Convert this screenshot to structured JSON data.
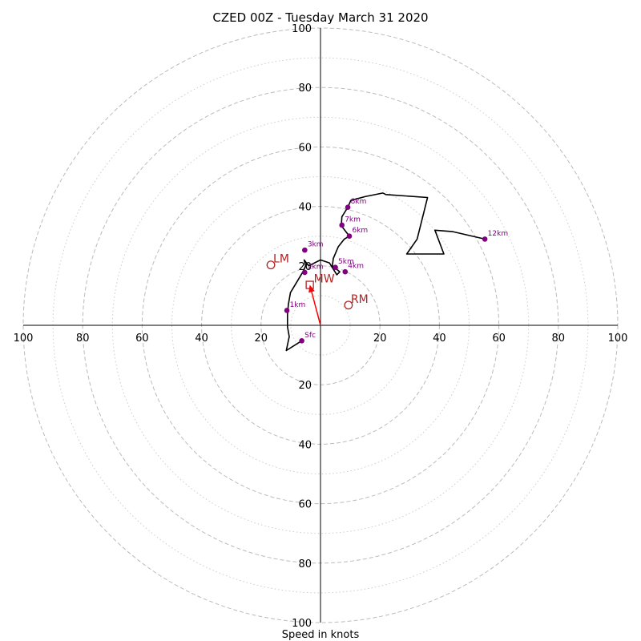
{
  "chart_data": {
    "type": "hodograph",
    "title": "CZED 00Z - Tuesday March 31 2020",
    "xlabel": "Speed in knots",
    "units": "knots",
    "range": [
      -100,
      100
    ],
    "ring_major_values": [
      20,
      40,
      60,
      80,
      100
    ],
    "ring_minor_values": [
      10,
      30,
      50,
      70,
      90
    ],
    "tick_values": [
      100,
      80,
      60,
      40,
      20
    ],
    "colors": {
      "trace": "#000000",
      "height_points": "#800080",
      "storm_motion": "#b22222",
      "mean_wind_arrow": "#ff0000",
      "major_rings": "#bbbbbb",
      "minor_rings": "#cccccc",
      "axes": "#000000"
    },
    "trace": [
      [
        -6.3,
        -5.2
      ],
      [
        -11.5,
        -8.5
      ],
      [
        -10.5,
        -3.8
      ],
      [
        -11.1,
        -0.5
      ],
      [
        -11.1,
        3.5
      ],
      [
        -10.8,
        7.0
      ],
      [
        -10.1,
        11.0
      ],
      [
        -8.3,
        14.0
      ],
      [
        -5.9,
        18.0
      ],
      [
        -5.0,
        20.0
      ],
      [
        -5.5,
        22.0
      ],
      [
        -4.0,
        20.0
      ],
      [
        0.0,
        22.0
      ],
      [
        3.0,
        21.0
      ],
      [
        5.5,
        17.0
      ],
      [
        6.5,
        18.0
      ],
      [
        4.0,
        20.0
      ],
      [
        4.3,
        22.5
      ],
      [
        6.0,
        26.5
      ],
      [
        8.0,
        29.0
      ],
      [
        9.7,
        30.0
      ],
      [
        7.0,
        33.5
      ],
      [
        7.2,
        36.5
      ],
      [
        9.2,
        39.7
      ],
      [
        10.2,
        42.0
      ],
      [
        15.0,
        43.3
      ],
      [
        21.0,
        44.5
      ],
      [
        22.0,
        44.0
      ],
      [
        36.0,
        43.0
      ],
      [
        32.5,
        29.0
      ],
      [
        29.0,
        24.0
      ],
      [
        41.5,
        24.0
      ],
      [
        38.5,
        32.0
      ],
      [
        44.5,
        31.5
      ],
      [
        55.3,
        29.0
      ],
      [
        55.3,
        29.0
      ]
    ],
    "height_points": [
      {
        "label": "Sfc",
        "u": -6.3,
        "v": -5.2
      },
      {
        "label": "1km",
        "u": -11.3,
        "v": 5.0
      },
      {
        "label": "2km",
        "u": -5.3,
        "v": 17.8
      },
      {
        "label": "3km",
        "u": -5.3,
        "v": 25.3
      },
      {
        "label": "4km",
        "u": 8.3,
        "v": 18.0
      },
      {
        "label": "5km",
        "u": 5.0,
        "v": 19.5
      },
      {
        "label": "6km",
        "u": 9.7,
        "v": 30.0
      },
      {
        "label": "7km",
        "u": 7.2,
        "v": 33.7
      },
      {
        "label": "8km",
        "u": 9.2,
        "v": 39.7
      },
      {
        "label": "12km",
        "u": 55.3,
        "v": 29.0
      }
    ],
    "storm_motion": {
      "RM": {
        "label": "RM",
        "u": 9.4,
        "v": 6.8
      },
      "LM": {
        "label": "LM",
        "u": -16.7,
        "v": 20.3
      },
      "MW": {
        "label": "MW",
        "u": -3.6,
        "v": 13.6
      }
    }
  }
}
